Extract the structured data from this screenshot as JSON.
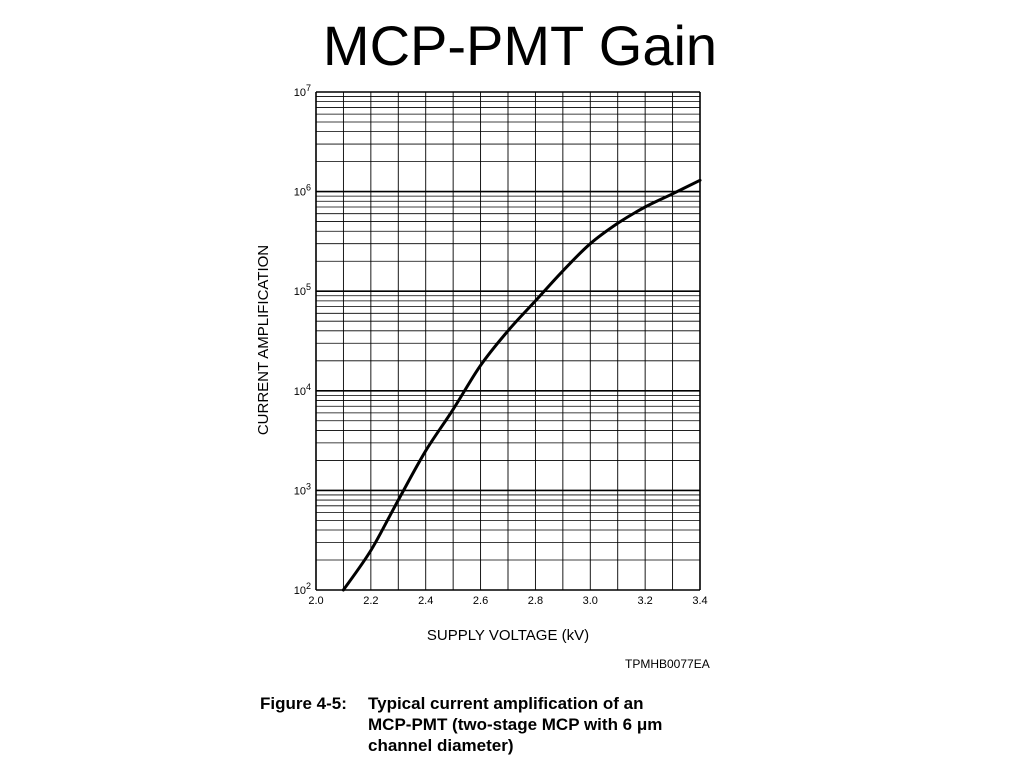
{
  "slide": {
    "title": "MCP-PMT Gain"
  },
  "figure": {
    "code": "TPMHB0077EA",
    "caption_label": "Figure 4-5:",
    "caption_lines": [
      "Typical current amplification of an",
      "MCP-PMT (two-stage MCP with 6 μm",
      "channel diameter)"
    ]
  },
  "chart_data": {
    "type": "line",
    "xlabel": "SUPPLY VOLTAGE (kV)",
    "ylabel": "CURRENT AMPLIFICATION",
    "xlim": [
      2.0,
      3.4
    ],
    "ylim": [
      100,
      10000000
    ],
    "yscale": "log",
    "grid": true,
    "x_ticks": [
      "2.0",
      "2.2",
      "2.4",
      "2.6",
      "2.8",
      "3.0",
      "3.2",
      "3.4"
    ],
    "y_ticks": [
      {
        "base": "10",
        "exp": "2"
      },
      {
        "base": "10",
        "exp": "3"
      },
      {
        "base": "10",
        "exp": "4"
      },
      {
        "base": "10",
        "exp": "5"
      },
      {
        "base": "10",
        "exp": "6"
      },
      {
        "base": "10",
        "exp": "7"
      }
    ],
    "series": [
      {
        "x": [
          2.1,
          2.2,
          2.3,
          2.4,
          2.5,
          2.6,
          2.7,
          2.8,
          2.9,
          3.0,
          3.1,
          3.2,
          3.3,
          3.4
        ],
        "y": [
          100,
          250,
          800,
          2500,
          6500,
          18000,
          40000,
          80000,
          160000,
          300000,
          480000,
          700000,
          950000,
          1300000
        ]
      }
    ]
  }
}
